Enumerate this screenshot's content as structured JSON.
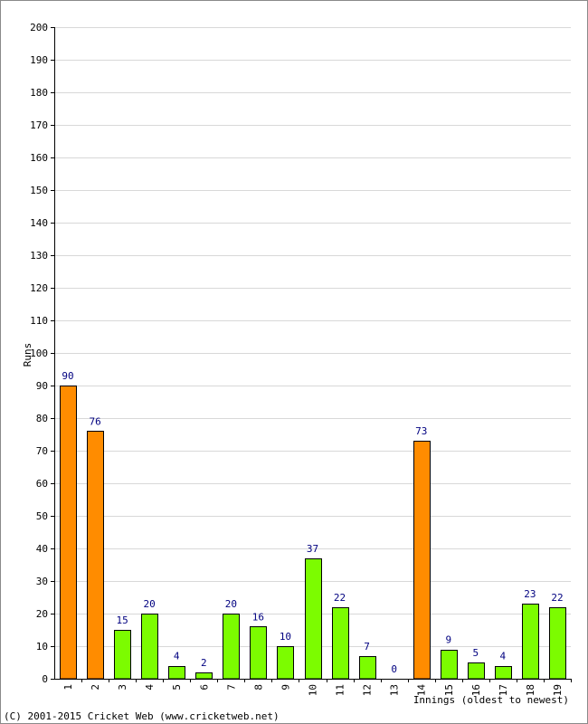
{
  "chart_data": {
    "type": "bar",
    "xlabel": "Innings (oldest to newest)",
    "ylabel": "Runs",
    "ylim": [
      0,
      200
    ],
    "ytick_step": 10,
    "grid": true,
    "categories": [
      "1",
      "2",
      "3",
      "4",
      "5",
      "6",
      "7",
      "8",
      "9",
      "10",
      "11",
      "12",
      "13",
      "14",
      "15",
      "16",
      "17",
      "18",
      "19"
    ],
    "values": [
      90,
      76,
      15,
      20,
      4,
      2,
      20,
      16,
      10,
      37,
      22,
      7,
      0,
      73,
      9,
      5,
      4,
      23,
      22
    ],
    "value_labels": [
      "90",
      "76",
      "15",
      "20",
      "4",
      "2",
      "20",
      "16",
      "10",
      "37",
      "22",
      "7",
      "0",
      "73",
      "9",
      "5",
      "4",
      "23",
      "22"
    ],
    "colors": {
      "fifty_plus": "#ff8c00",
      "below_fifty": "#7cfc00",
      "bar_border": "#000000",
      "value_label": "#000080",
      "grid": "#d8d8d8"
    }
  },
  "footer": {
    "copyright": "(C) 2001-2015 Cricket Web (www.cricketweb.net)"
  }
}
